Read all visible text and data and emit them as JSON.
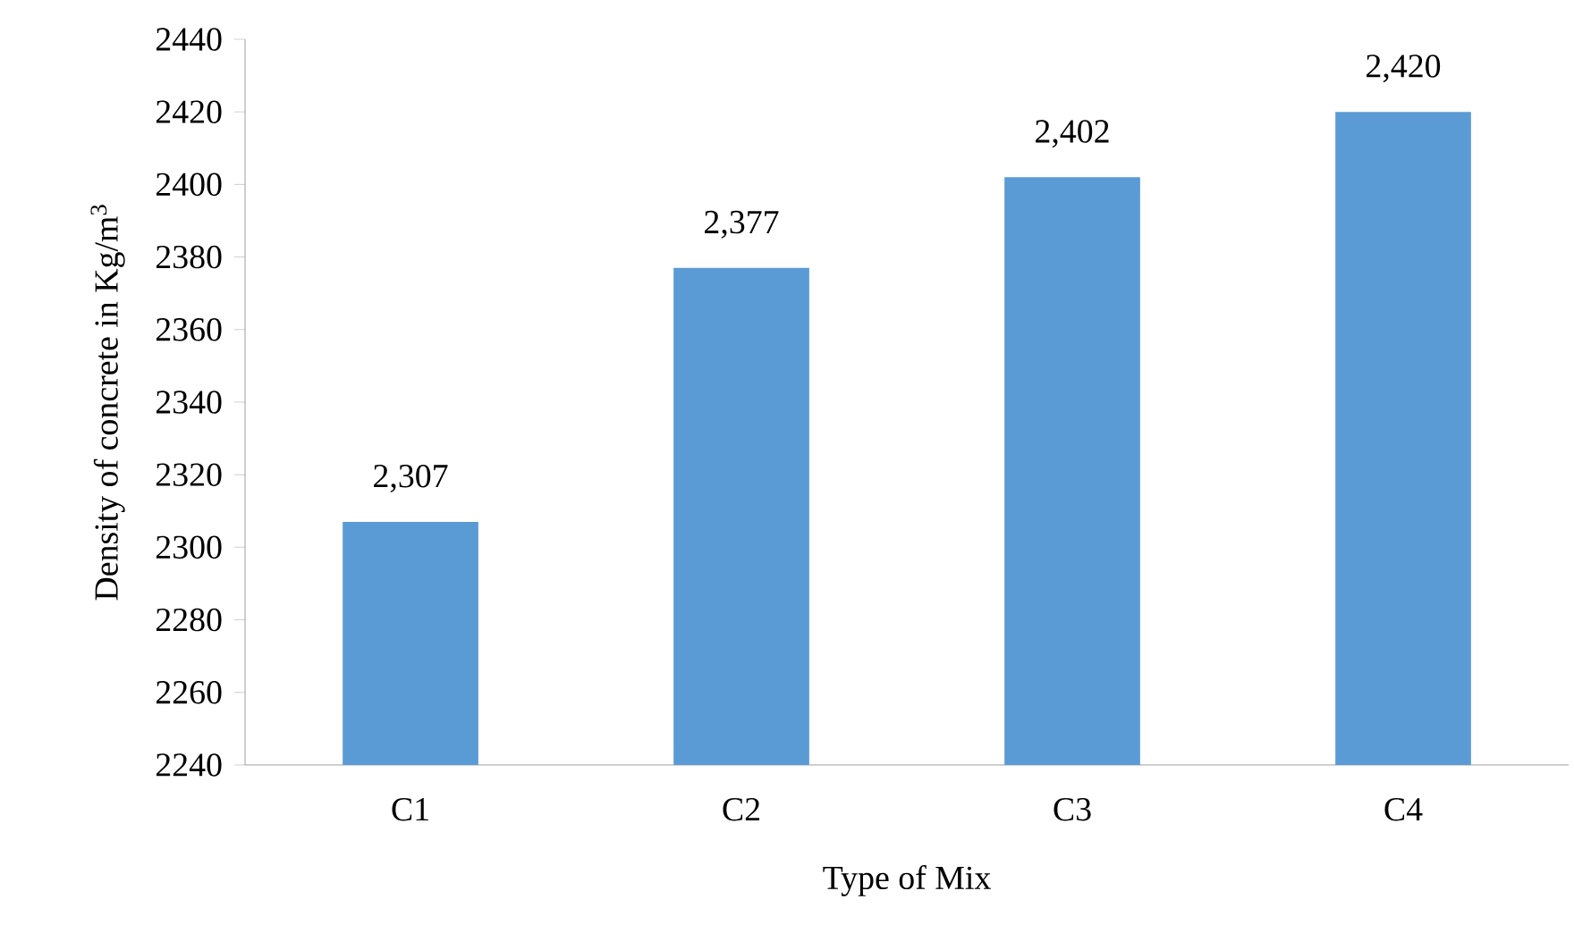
{
  "chart_data": {
    "type": "bar",
    "xlabel": "Type of Mix",
    "ylabel": "Density of concrete in Kg/m$^{3}$",
    "categories": [
      "C1",
      "C2",
      "C3",
      "C4"
    ],
    "values": [
      2307,
      2377,
      2402,
      2420
    ],
    "value_labels": [
      "2,307",
      "2,377",
      "2,402",
      "2,420"
    ],
    "color": "#5b9bd5",
    "ylim": [
      2240,
      2440
    ],
    "yticks": [
      2240,
      2260,
      2280,
      2300,
      2320,
      2340,
      2360,
      2380,
      2400,
      2420,
      2440
    ],
    "grid": false
  }
}
